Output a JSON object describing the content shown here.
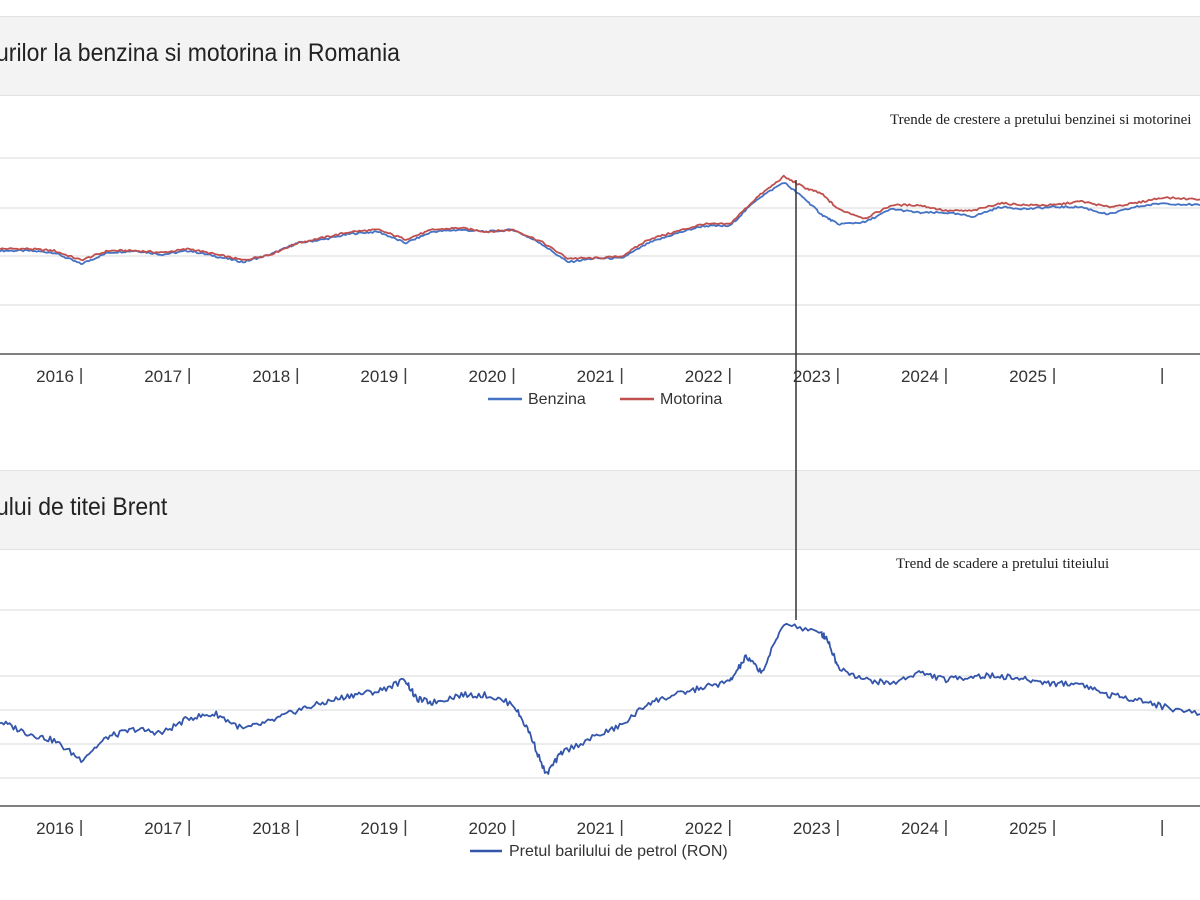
{
  "charts": {
    "top": {
      "title": "urilor la benzina si motorina in Romania",
      "annotation": "Trende de crestere a pretului benzinei si motorinei",
      "x_tick_labels": [
        "2016",
        "2017",
        "2018",
        "2019",
        "2020",
        "2021",
        "2022",
        "2023",
        "2024",
        "2025"
      ]
    },
    "bottom": {
      "title": "ului de titei Brent",
      "annotation": "Trend de scadere a pretului titeiului",
      "x_tick_labels": [
        "2016",
        "2017",
        "2018",
        "2019",
        "2020",
        "2021",
        "2022",
        "2023",
        "2024",
        "2025"
      ]
    }
  },
  "chart_data": [
    {
      "type": "line",
      "title": "urilor la benzina si motorina in Romania",
      "xlabel": "",
      "ylabel": "",
      "xlim": [
        2015.25,
        2026.35
      ],
      "ylim": [
        0,
        100
      ],
      "grid": true,
      "legend": "bottom-center",
      "x": [
        2015.25,
        2015.5,
        2015.75,
        2016.0,
        2016.25,
        2016.5,
        2016.75,
        2017.0,
        2017.25,
        2017.5,
        2017.75,
        2018.0,
        2018.25,
        2018.5,
        2018.75,
        2019.0,
        2019.25,
        2019.5,
        2019.75,
        2020.0,
        2020.25,
        2020.5,
        2020.75,
        2021.0,
        2021.25,
        2021.5,
        2021.75,
        2022.0,
        2022.25,
        2022.5,
        2022.7,
        2022.85,
        2023.0,
        2023.25,
        2023.5,
        2023.75,
        2024.0,
        2024.25,
        2024.5,
        2024.75,
        2025.0,
        2025.25,
        2025.5,
        2025.75,
        2026.0,
        2026.35
      ],
      "series": [
        {
          "name": "Benzina",
          "color": "#4472c4",
          "values": [
            47,
            47,
            46,
            40,
            46,
            47,
            45,
            47,
            44,
            41,
            45,
            51,
            53,
            56,
            57,
            51,
            57,
            58,
            57,
            58,
            51,
            41,
            43,
            43,
            51,
            56,
            60,
            60,
            74,
            83,
            74,
            66,
            61,
            62,
            69,
            67,
            67,
            65,
            70,
            69,
            70,
            70,
            66,
            70,
            72,
            71
          ]
        },
        {
          "name": "Motorina",
          "color": "#c0504d",
          "values": [
            48,
            48,
            47,
            42,
            47,
            47,
            46,
            48,
            45,
            42,
            45,
            51,
            54,
            57,
            58,
            53,
            58,
            59,
            57,
            58,
            52,
            43,
            43,
            44,
            53,
            57,
            61,
            61,
            75,
            86,
            80,
            77,
            69,
            64,
            71,
            71,
            68,
            68,
            72,
            71,
            71,
            73,
            70,
            72,
            75,
            74
          ]
        }
      ]
    },
    {
      "type": "line",
      "title": "ului de titei Brent",
      "xlabel": "",
      "ylabel": "",
      "xlim": [
        2015.25,
        2026.35
      ],
      "ylim": [
        0,
        100
      ],
      "grid": true,
      "legend": "bottom-center",
      "x": [
        2015.25,
        2015.5,
        2015.75,
        2016.0,
        2016.25,
        2016.5,
        2016.75,
        2017.0,
        2017.25,
        2017.5,
        2017.75,
        2018.0,
        2018.25,
        2018.5,
        2018.75,
        2019.0,
        2019.1,
        2019.25,
        2019.5,
        2019.75,
        2020.0,
        2020.15,
        2020.3,
        2020.45,
        2020.75,
        2021.0,
        2021.25,
        2021.5,
        2021.75,
        2022.0,
        2022.15,
        2022.3,
        2022.5,
        2022.85,
        2022.9,
        2023.0,
        2023.25,
        2023.5,
        2023.75,
        2024.0,
        2024.25,
        2024.5,
        2024.75,
        2025.0,
        2025.25,
        2025.5,
        2025.75,
        2026.0,
        2026.35
      ],
      "series": [
        {
          "name": "Pretul barilului de petrol (RON)",
          "color": "#3355aa",
          "values": [
            36,
            30,
            26,
            16,
            28,
            32,
            30,
            38,
            40,
            32,
            36,
            42,
            46,
            50,
            52,
            58,
            48,
            46,
            50,
            50,
            45,
            30,
            8,
            20,
            28,
            34,
            46,
            50,
            54,
            57,
            70,
            62,
            88,
            82,
            80,
            65,
            58,
            56,
            62,
            58,
            60,
            60,
            58,
            56,
            56,
            50,
            48,
            44,
            40
          ]
        }
      ]
    }
  ]
}
